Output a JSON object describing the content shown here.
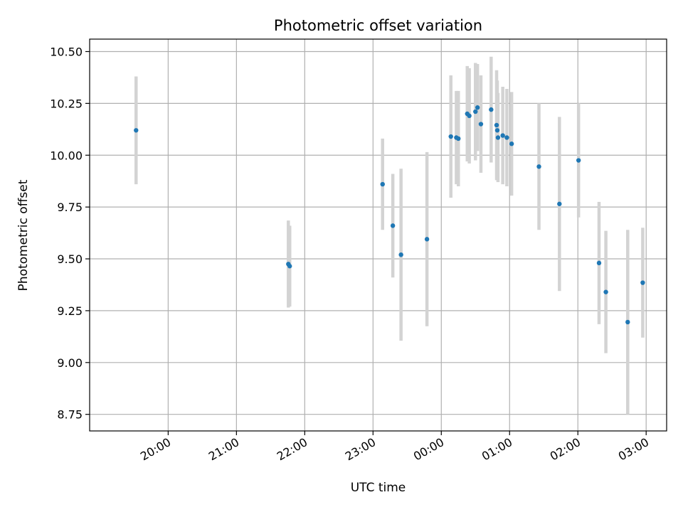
{
  "chart_data": {
    "type": "scatter",
    "title": "Photometric offset variation",
    "xlabel": "UTC time",
    "ylabel": "Photometric offset",
    "grid": true,
    "colors": {
      "point": "#1f77b4",
      "errorbar": "#d3d3d3",
      "grid": "#b0b0b0"
    },
    "xlim_hours": [
      18.85,
      27.3
    ],
    "ylim": [
      8.67,
      10.56
    ],
    "x_ticks": [
      {
        "hours": 20,
        "label": "20:00"
      },
      {
        "hours": 21,
        "label": "21:00"
      },
      {
        "hours": 22,
        "label": "22:00"
      },
      {
        "hours": 23,
        "label": "23:00"
      },
      {
        "hours": 24,
        "label": "00:00"
      },
      {
        "hours": 25,
        "label": "01:00"
      },
      {
        "hours": 26,
        "label": "02:00"
      },
      {
        "hours": 27,
        "label": "03:00"
      }
    ],
    "y_ticks": [
      {
        "value": 8.75,
        "label": "8.75"
      },
      {
        "value": 9.0,
        "label": "9.00"
      },
      {
        "value": 9.25,
        "label": "9.25"
      },
      {
        "value": 9.5,
        "label": "9.50"
      },
      {
        "value": 9.75,
        "label": "9.75"
      },
      {
        "value": 10.0,
        "label": "10.00"
      },
      {
        "value": 10.25,
        "label": "10.25"
      },
      {
        "value": 10.5,
        "label": "10.50"
      }
    ],
    "series": [
      {
        "name": "offset",
        "points": [
          {
            "x": 19.53,
            "y": 10.12,
            "err": 0.26
          },
          {
            "x": 21.76,
            "y": 9.475,
            "err": 0.21
          },
          {
            "x": 21.78,
            "y": 9.465,
            "err": 0.195
          },
          {
            "x": 23.14,
            "y": 9.86,
            "err": 0.22
          },
          {
            "x": 23.29,
            "y": 9.66,
            "err": 0.25
          },
          {
            "x": 23.41,
            "y": 9.52,
            "err": 0.415
          },
          {
            "x": 23.79,
            "y": 9.595,
            "err": 0.42
          },
          {
            "x": 24.14,
            "y": 10.09,
            "err": 0.295
          },
          {
            "x": 24.22,
            "y": 10.085,
            "err": 0.225
          },
          {
            "x": 24.25,
            "y": 10.08,
            "err": 0.23
          },
          {
            "x": 24.38,
            "y": 10.2,
            "err": 0.23
          },
          {
            "x": 24.41,
            "y": 10.19,
            "err": 0.23
          },
          {
            "x": 24.5,
            "y": 10.21,
            "err": 0.235
          },
          {
            "x": 24.53,
            "y": 10.23,
            "err": 0.21
          },
          {
            "x": 24.58,
            "y": 10.15,
            "err": 0.235
          },
          {
            "x": 24.73,
            "y": 10.22,
            "err": 0.255
          },
          {
            "x": 24.81,
            "y": 10.145,
            "err": 0.265
          },
          {
            "x": 24.82,
            "y": 10.12,
            "err": 0.24
          },
          {
            "x": 24.83,
            "y": 10.085,
            "err": 0.215
          },
          {
            "x": 24.9,
            "y": 10.095,
            "err": 0.235
          },
          {
            "x": 24.96,
            "y": 10.085,
            "err": 0.235
          },
          {
            "x": 25.03,
            "y": 10.055,
            "err": 0.25
          },
          {
            "x": 25.43,
            "y": 9.945,
            "err": 0.305
          },
          {
            "x": 25.73,
            "y": 9.765,
            "err": 0.42
          },
          {
            "x": 26.01,
            "y": 9.975,
            "err": 0.275
          },
          {
            "x": 26.31,
            "y": 9.48,
            "err": 0.295
          },
          {
            "x": 26.41,
            "y": 9.34,
            "err": 0.295
          },
          {
            "x": 26.73,
            "y": 9.195,
            "err": 0.445
          },
          {
            "x": 26.95,
            "y": 9.385,
            "err": 0.265
          }
        ]
      }
    ]
  }
}
